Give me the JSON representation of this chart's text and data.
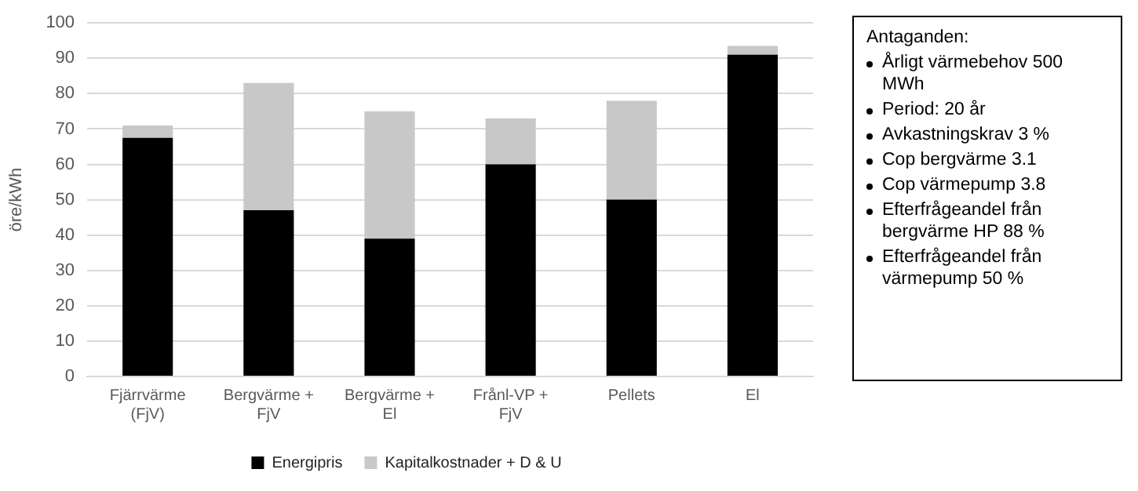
{
  "chart_data": [
    {
      "type": "bar",
      "stacked": true,
      "ylabel": "öre/kWh",
      "categories": [
        "Fjärrvärme\n(FjV)",
        "Bergvärme +\nFjV",
        "Bergvärme +\nEl",
        "Frånl-VP +\nFjV",
        "Pellets",
        "El"
      ],
      "series": [
        {
          "name": "Energipris",
          "color": "#000000",
          "values": [
            67.5,
            47,
            39,
            60,
            50,
            91
          ]
        },
        {
          "name": "Kapitalkostnader + D & U",
          "color": "#c8c8c8",
          "values": [
            3.5,
            36,
            36,
            13,
            28,
            2.5
          ]
        }
      ],
      "ylim": [
        0,
        100
      ],
      "yticks": [
        0,
        10,
        20,
        30,
        40,
        50,
        60,
        70,
        80,
        90,
        100
      ],
      "grid": "y",
      "legend": "bottom"
    },
    {
      "type": "other",
      "title": "Antaganden:",
      "annotations": [
        "Årligt värmebehov 500 MWh",
        "Period: 20 år",
        "Avkastningskrav 3 %",
        "Cop bergvärme 3.1",
        "Cop värmepump 3.8",
        "Efterfrågeandel från bergvärme HP 88 %",
        "Efterfrågeandel från värmepump 50 %"
      ]
    }
  ]
}
